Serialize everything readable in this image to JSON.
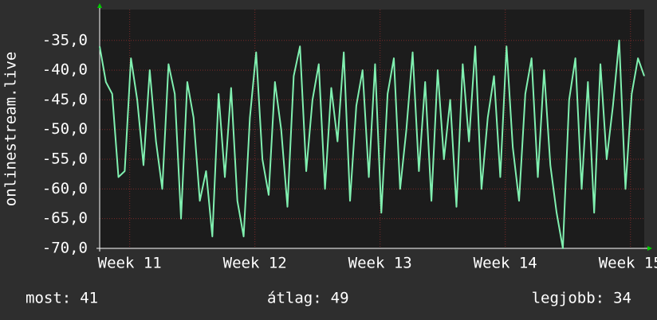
{
  "chart_data": {
    "type": "line",
    "y_label": "onlinestream.live",
    "x": [
      10.76,
      10.81,
      10.86,
      10.91,
      10.96,
      11.01,
      11.06,
      11.11,
      11.16,
      11.21,
      11.26,
      11.31,
      11.36,
      11.41,
      11.46,
      11.51,
      11.56,
      11.61,
      11.66,
      11.71,
      11.76,
      11.81,
      11.86,
      11.91,
      11.96,
      12.01,
      12.06,
      12.11,
      12.16,
      12.21,
      12.26,
      12.31,
      12.36,
      12.41,
      12.46,
      12.51,
      12.56,
      12.61,
      12.66,
      12.71,
      12.76,
      12.81,
      12.86,
      12.91,
      12.96,
      13.01,
      13.06,
      13.11,
      13.16,
      13.21,
      13.26,
      13.31,
      13.36,
      13.41,
      13.46,
      13.51,
      13.56,
      13.61,
      13.66,
      13.71,
      13.76,
      13.81,
      13.86,
      13.91,
      13.96,
      14.01,
      14.06,
      14.11,
      14.16,
      14.21,
      14.26,
      14.31,
      14.36,
      14.41,
      14.46,
      14.51,
      14.56,
      14.61,
      14.66,
      14.71,
      14.76,
      14.81,
      14.86,
      14.91,
      14.96,
      15.01,
      15.06,
      15.11
    ],
    "series": [
      {
        "color": "#80f0b0",
        "values": [
          -36,
          -42,
          -44,
          -58,
          -57,
          -38,
          -45,
          -56,
          -40,
          -52,
          -60,
          -39,
          -44,
          -65,
          -42,
          -48,
          -62,
          -57,
          -68,
          -44,
          -58,
          -43,
          -62,
          -68,
          -48,
          -37,
          -55,
          -61,
          -42,
          -50,
          -63,
          -41,
          -36,
          -57,
          -45,
          -39,
          -60,
          -43,
          -52,
          -37,
          -62,
          -46,
          -40,
          -58,
          -39,
          -64,
          -44,
          -38,
          -60,
          -50,
          -37,
          -57,
          -42,
          -62,
          -40,
          -55,
          -45,
          -63,
          -39,
          -52,
          -36,
          -60,
          -48,
          -41,
          -58,
          -36,
          -53,
          -62,
          -44,
          -38,
          -58,
          -40,
          -56,
          -64,
          -70,
          -45,
          -38,
          -60,
          -42,
          -64,
          -39,
          -55,
          -46,
          -35,
          -60,
          -44,
          -38,
          -41
        ]
      }
    ],
    "xlim": [
      10.76,
      15.11
    ],
    "xticks": [
      {
        "value": 11,
        "label": "Week 11"
      },
      {
        "value": 12,
        "label": "Week 12"
      },
      {
        "value": 13,
        "label": "Week 13"
      },
      {
        "value": 14,
        "label": "Week 14"
      },
      {
        "value": 15,
        "label": "Week 15"
      }
    ],
    "ylim": [
      -70,
      -29.8
    ],
    "yticks": [
      {
        "value": -35,
        "label": "-35,0"
      },
      {
        "value": -40,
        "label": "-40,0"
      },
      {
        "value": -45,
        "label": "-45,0"
      },
      {
        "value": -50,
        "label": "-50,0"
      },
      {
        "value": -55,
        "label": "-55,0"
      },
      {
        "value": -60,
        "label": "-60,0"
      },
      {
        "value": -65,
        "label": "-65,0"
      },
      {
        "value": -70,
        "label": "-70,0"
      }
    ],
    "grid": true,
    "stats": [
      {
        "label": "most:",
        "value": 41
      },
      {
        "label": "átlag:",
        "value": 49
      },
      {
        "label": "legjobb:",
        "value": 34
      }
    ]
  }
}
